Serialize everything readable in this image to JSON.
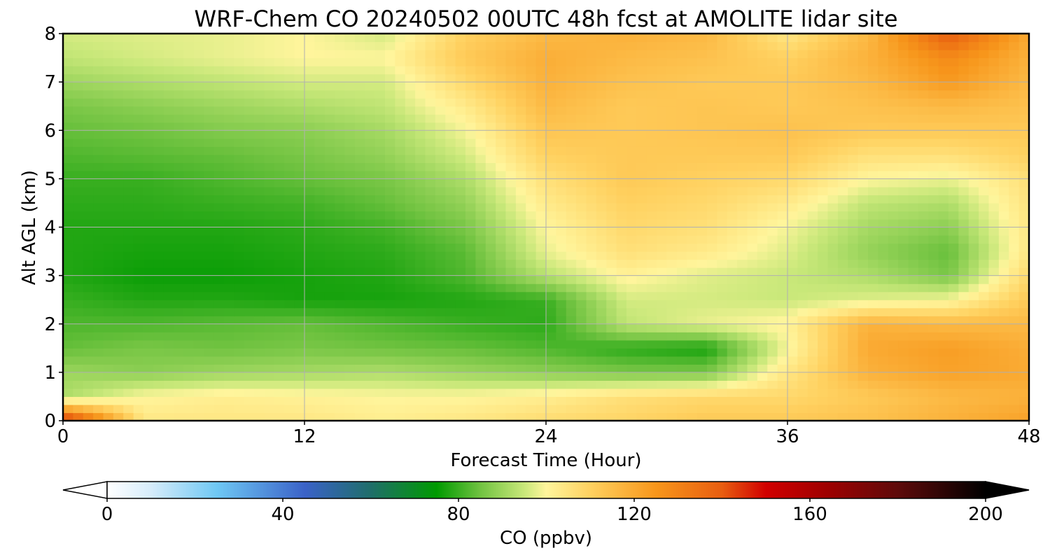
{
  "chart_data": {
    "type": "heatmap",
    "title": "WRF-Chem CO  20240502 00UTC 48h fcst at AMOLITE lidar site",
    "xlabel": "Forecast Time (Hour)",
    "ylabel": "Alt AGL (km)",
    "xlim": [
      0,
      48
    ],
    "ylim": [
      0,
      8
    ],
    "x_ticks": [
      "0",
      "12",
      "24",
      "36",
      "48"
    ],
    "y_ticks": [
      "0",
      "1",
      "2",
      "3",
      "4",
      "5",
      "6",
      "7",
      "8"
    ],
    "grid": true,
    "x": [
      0,
      4,
      8,
      12,
      16,
      20,
      24,
      28,
      32,
      36,
      40,
      44,
      48
    ],
    "y": [
      0,
      0.5,
      1,
      1.5,
      2,
      2.5,
      3,
      3.5,
      4,
      4.5,
      5,
      5.5,
      6,
      6.5,
      7,
      7.5,
      8
    ],
    "z": [
      [
        150,
        104,
        104,
        104,
        102,
        104,
        107,
        109,
        112,
        112,
        114,
        118,
        122
      ],
      [
        92,
        100,
        102,
        101,
        100,
        100,
        102,
        106,
        108,
        108,
        112,
        116,
        118
      ],
      [
        90,
        88,
        90,
        91,
        92,
        90,
        88,
        86,
        86,
        104,
        118,
        122,
        120
      ],
      [
        84,
        86,
        85,
        86,
        85,
        84,
        82,
        79,
        77,
        99,
        120,
        123,
        119
      ],
      [
        82,
        82,
        83,
        84,
        82,
        80,
        79,
        94,
        98,
        101,
        118,
        116,
        116
      ],
      [
        80,
        78,
        78,
        77,
        77,
        78,
        80,
        96,
        96,
        95,
        97,
        99,
        112
      ],
      [
        78,
        76,
        76,
        77,
        78,
        82,
        93,
        101,
        97,
        95,
        92,
        86,
        108
      ],
      [
        78,
        77,
        77,
        78,
        79,
        83,
        98,
        106,
        103,
        97,
        89,
        84,
        104
      ],
      [
        78,
        78,
        78,
        79,
        81,
        86,
        100,
        108,
        106,
        99,
        91,
        88,
        104
      ],
      [
        79,
        79,
        80,
        81,
        84,
        89,
        103,
        110,
        108,
        103,
        94,
        92,
        105
      ],
      [
        80,
        80,
        82,
        84,
        86,
        92,
        106,
        112,
        110,
        108,
        100,
        98,
        106
      ],
      [
        82,
        83,
        84,
        86,
        89,
        96,
        110,
        112,
        112,
        112,
        106,
        106,
        110
      ],
      [
        84,
        85,
        87,
        88,
        91,
        99,
        113,
        112,
        113,
        114,
        112,
        112,
        112
      ],
      [
        86,
        88,
        90,
        92,
        94,
        103,
        116,
        112,
        113,
        112,
        114,
        116,
        114
      ],
      [
        90,
        92,
        94,
        96,
        96,
        108,
        118,
        114,
        112,
        112,
        116,
        124,
        116
      ],
      [
        94,
        96,
        98,
        100,
        100,
        112,
        119,
        116,
        114,
        110,
        118,
        128,
        118
      ],
      [
        96,
        97,
        98,
        100,
        96,
        110,
        116,
        118,
        116,
        104,
        116,
        140,
        120
      ]
    ],
    "colorbar": {
      "label": "CO  (ppbv)",
      "min": 0,
      "max": 200,
      "ticks": [
        "0",
        "40",
        "80",
        "120",
        "160",
        "200"
      ],
      "extend": "both",
      "stops": [
        {
          "v": 0,
          "c": "#ffffff"
        },
        {
          "v": 10,
          "c": "#d6ecfa"
        },
        {
          "v": 25,
          "c": "#6fc8f4"
        },
        {
          "v": 45,
          "c": "#3a62c8"
        },
        {
          "v": 60,
          "c": "#1f6e6a"
        },
        {
          "v": 75,
          "c": "#009a00"
        },
        {
          "v": 85,
          "c": "#71c341"
        },
        {
          "v": 95,
          "c": "#c9e87a"
        },
        {
          "v": 100,
          "c": "#fff59c"
        },
        {
          "v": 110,
          "c": "#ffd160"
        },
        {
          "v": 125,
          "c": "#f7961b"
        },
        {
          "v": 140,
          "c": "#e85d10"
        },
        {
          "v": 150,
          "c": "#d10000"
        },
        {
          "v": 165,
          "c": "#9a0000"
        },
        {
          "v": 180,
          "c": "#5e0a0a"
        },
        {
          "v": 200,
          "c": "#000000"
        }
      ]
    }
  }
}
